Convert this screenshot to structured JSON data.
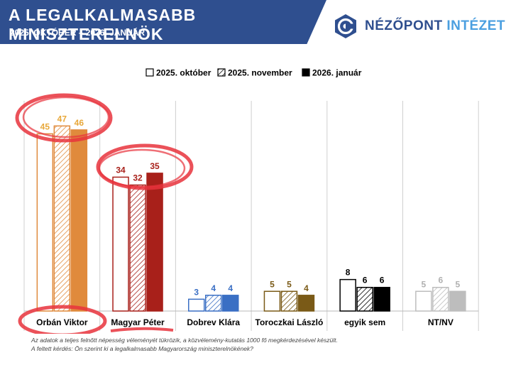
{
  "header": {
    "title": "A LEGALKALMASABB MINISZTERELNÖK",
    "subtitle": "2025. OKTÓBER – 2026. JANUÁR"
  },
  "brand": {
    "name_part1": "NÉZŐPONT",
    "name_part2": "INTÉZET",
    "logo_icon": "nezopont-logo-icon",
    "color_primary": "#2f4f8f",
    "color_accent": "#4b9fe0"
  },
  "chart_data": {
    "type": "bar",
    "categories": [
      "Orbán Viktor",
      "Magyar Péter",
      "Dobrev Klára",
      "Toroczkai László",
      "egyik sem",
      "NT/NV"
    ],
    "series": [
      {
        "name": "2025. október",
        "values": [
          45,
          34,
          3,
          5,
          8,
          5
        ],
        "style": "outline"
      },
      {
        "name": "2025. november",
        "values": [
          47,
          32,
          4,
          5,
          6,
          6
        ],
        "style": "hatched"
      },
      {
        "name": "2026. január",
        "values": [
          46,
          35,
          4,
          4,
          6,
          5
        ],
        "style": "solid"
      }
    ],
    "category_colors": [
      "#e08a3c",
      "#a8201a",
      "#3a6fc4",
      "#7a5a17",
      "#000000",
      "#bdbdbd"
    ],
    "label_colors": [
      "#e8a83a",
      "#a8201a",
      "#3a6fc4",
      "#7a5a17",
      "#000000",
      "#b0b0b0"
    ],
    "ylim": [
      0,
      55
    ],
    "legend_position": "top-center",
    "grid": "vertical separators",
    "highlights": [
      "Orbán Viktor",
      "Magyar Péter"
    ]
  },
  "footnotes": {
    "line1": "Az adatok a teljes felnőtt népesség véleményét tükrözik, a közvélemény-kutatás 1000 fő megkérdezésével készült.",
    "line2": "A feltett kérdés: Ön szerint ki a legalkalmasabb Magyarország miniszterelnökének?"
  }
}
